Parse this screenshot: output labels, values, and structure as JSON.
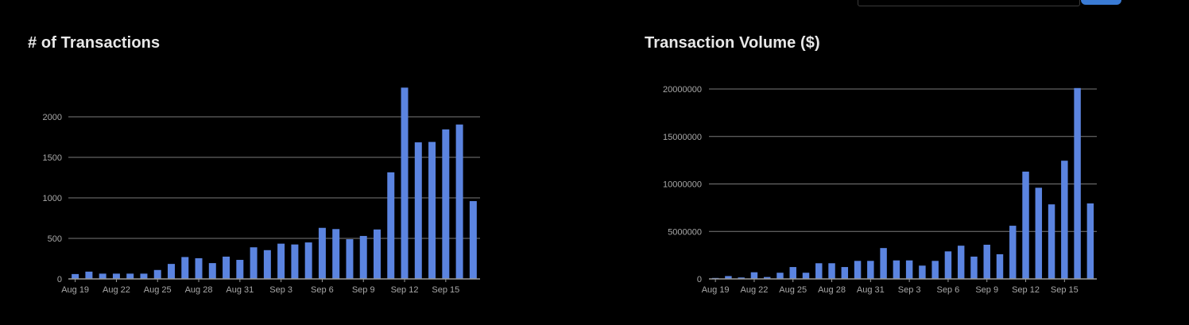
{
  "accent_color": "#3a7bd5",
  "bar_color": "#5b84e0",
  "chart_data": [
    {
      "type": "bar",
      "title": "# of Transactions",
      "xlabel": "",
      "ylabel": "",
      "ylim": [
        0,
        2500
      ],
      "yticks": [
        0,
        500,
        1000,
        1500,
        2000
      ],
      "grid": true,
      "x_tick_labels": [
        "Aug 19",
        "Aug 22",
        "Aug 25",
        "Aug 28",
        "Aug 31",
        "Sep 3",
        "Sep 6",
        "Sep 9",
        "Sep 12",
        "Sep 15"
      ],
      "categories": [
        "Aug 19",
        "Aug 20",
        "Aug 21",
        "Aug 22",
        "Aug 23",
        "Aug 24",
        "Aug 25",
        "Aug 26",
        "Aug 27",
        "Aug 28",
        "Aug 29",
        "Aug 30",
        "Aug 31",
        "Sep 1",
        "Sep 2",
        "Sep 3",
        "Sep 4",
        "Sep 5",
        "Sep 6",
        "Sep 7",
        "Sep 8",
        "Sep 9",
        "Sep 10",
        "Sep 11",
        "Sep 12",
        "Sep 13",
        "Sep 14",
        "Sep 15",
        "Sep 16",
        "Sep 17"
      ],
      "values": [
        60,
        90,
        65,
        65,
        65,
        65,
        110,
        185,
        270,
        255,
        195,
        275,
        235,
        390,
        355,
        435,
        425,
        450,
        630,
        615,
        490,
        530,
        610,
        1315,
        2360,
        1685,
        1690,
        1845,
        1905,
        960
      ]
    },
    {
      "type": "bar",
      "title": "Transaction Volume ($)",
      "xlabel": "",
      "ylabel": "",
      "ylim": [
        0,
        20000000
      ],
      "yticks": [
        0,
        5000000,
        10000000,
        15000000,
        20000000
      ],
      "grid": true,
      "x_tick_labels": [
        "Aug 19",
        "Aug 22",
        "Aug 25",
        "Aug 28",
        "Aug 31",
        "Sep 3",
        "Sep 6",
        "Sep 9",
        "Sep 12",
        "Sep 15"
      ],
      "categories": [
        "Aug 19",
        "Aug 20",
        "Aug 21",
        "Aug 22",
        "Aug 23",
        "Aug 24",
        "Aug 25",
        "Aug 26",
        "Aug 27",
        "Aug 28",
        "Aug 29",
        "Aug 30",
        "Aug 31",
        "Sep 1",
        "Sep 2",
        "Sep 3",
        "Sep 4",
        "Sep 5",
        "Sep 6",
        "Sep 7",
        "Sep 8",
        "Sep 9",
        "Sep 10",
        "Sep 11",
        "Sep 12",
        "Sep 13",
        "Sep 14",
        "Sep 15",
        "Sep 16",
        "Sep 17"
      ],
      "values": [
        100000,
        300000,
        150000,
        700000,
        200000,
        650000,
        1250000,
        650000,
        1650000,
        1650000,
        1250000,
        1900000,
        1900000,
        3250000,
        1950000,
        1950000,
        1400000,
        1900000,
        2900000,
        3500000,
        2350000,
        3600000,
        2600000,
        5600000,
        11300000,
        9600000,
        7850000,
        12450000,
        20100000,
        7950000
      ]
    }
  ]
}
